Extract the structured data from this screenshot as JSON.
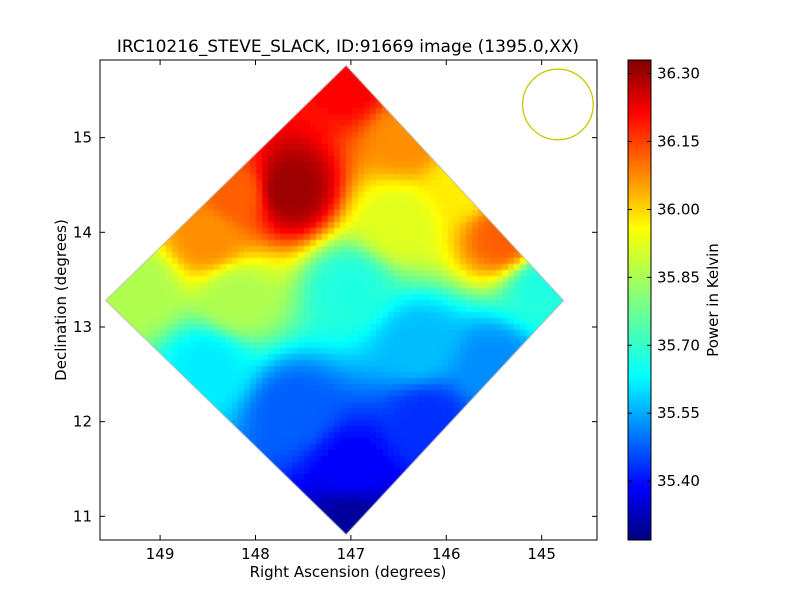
{
  "chart_data": {
    "type": "heatmap",
    "title": "IRC10216_STEVE_SLACK, ID:91669 image (1395.0,XX)",
    "xlabel": "Right Ascension (degrees)",
    "ylabel": "Declination (degrees)",
    "xlim": [
      149.63,
      144.42
    ],
    "ylim": [
      10.75,
      15.82
    ],
    "xticks": [
      149,
      148,
      147,
      146,
      145
    ],
    "yticks": [
      11,
      12,
      13,
      14,
      15
    ],
    "grid": false,
    "colormap": "jet",
    "colorbar": {
      "label": "Power in Kelvin",
      "vmin": 35.27,
      "vmax": 36.33,
      "ticks": [
        "35.40",
        "35.55",
        "35.70",
        "35.85",
        "36.00",
        "36.15",
        "36.30"
      ]
    },
    "map_footprint": "diamond",
    "map_center": [
      147.05,
      13.28
    ],
    "beam_circle": {
      "ra": 144.83,
      "dec": 15.35,
      "radius_deg": 0.37,
      "color": "#c8c800"
    },
    "field_samples": [
      {
        "ra": 147.0,
        "dec": 15.6,
        "value": 36.2
      },
      {
        "ra": 147.65,
        "dec": 14.45,
        "value": 36.3
      },
      {
        "ra": 148.2,
        "dec": 14.4,
        "value": 36.1
      },
      {
        "ra": 148.5,
        "dec": 13.95,
        "value": 36.05
      },
      {
        "ra": 146.4,
        "dec": 15.0,
        "value": 36.05
      },
      {
        "ra": 145.4,
        "dec": 13.95,
        "value": 36.1
      },
      {
        "ra": 145.8,
        "dec": 14.5,
        "value": 35.95
      },
      {
        "ra": 146.5,
        "dec": 14.1,
        "value": 35.9
      },
      {
        "ra": 149.2,
        "dec": 13.4,
        "value": 35.85
      },
      {
        "ra": 148.2,
        "dec": 13.3,
        "value": 35.85
      },
      {
        "ra": 147.0,
        "dec": 13.4,
        "value": 35.7
      },
      {
        "ra": 145.0,
        "dec": 13.4,
        "value": 35.7
      },
      {
        "ra": 148.5,
        "dec": 12.6,
        "value": 35.65
      },
      {
        "ra": 146.3,
        "dec": 12.8,
        "value": 35.6
      },
      {
        "ra": 145.5,
        "dec": 12.6,
        "value": 35.55
      },
      {
        "ra": 147.6,
        "dec": 12.1,
        "value": 35.5
      },
      {
        "ra": 146.2,
        "dec": 12.0,
        "value": 35.45
      },
      {
        "ra": 147.0,
        "dec": 11.5,
        "value": 35.4
      },
      {
        "ra": 147.0,
        "dec": 10.95,
        "value": 35.3
      }
    ]
  }
}
